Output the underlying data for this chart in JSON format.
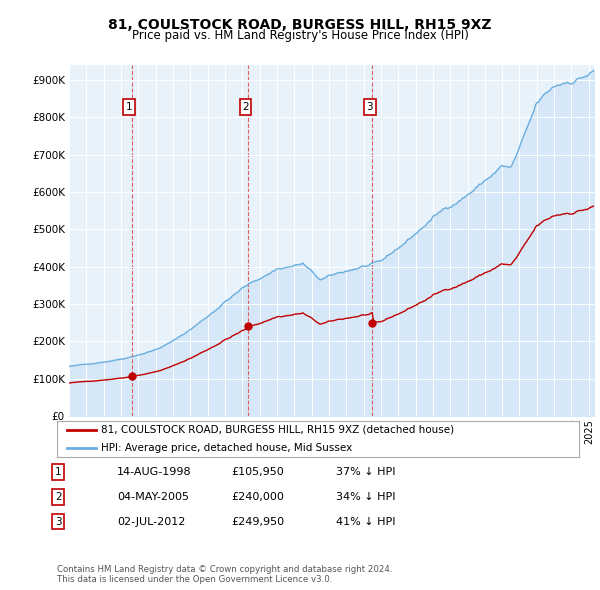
{
  "title": "81, COULSTOCK ROAD, BURGESS HILL, RH15 9XZ",
  "subtitle": "Price paid vs. HM Land Registry's House Price Index (HPI)",
  "ytick_values": [
    0,
    100000,
    200000,
    300000,
    400000,
    500000,
    600000,
    700000,
    800000,
    900000
  ],
  "ylim": [
    0,
    940000
  ],
  "xlim_start": 1995.0,
  "xlim_end": 2025.3,
  "hpi_color": "#6aaee0",
  "hpi_fill_color": "#d6e8f7",
  "price_color": "#c00000",
  "dashed_color": "#e06060",
  "transactions": [
    {
      "num": 1,
      "date": 1998.62,
      "price": 105950,
      "label": "1"
    },
    {
      "num": 2,
      "date": 2005.34,
      "price": 240000,
      "label": "2"
    },
    {
      "num": 3,
      "date": 2012.5,
      "price": 249950,
      "label": "3"
    }
  ],
  "legend_entries": [
    "81, COULSTOCK ROAD, BURGESS HILL, RH15 9XZ (detached house)",
    "HPI: Average price, detached house, Mid Sussex"
  ],
  "table_rows": [
    [
      "1",
      "14-AUG-1998",
      "£105,950",
      "37% ↓ HPI"
    ],
    [
      "2",
      "04-MAY-2005",
      "£240,000",
      "34% ↓ HPI"
    ],
    [
      "3",
      "02-JUL-2012",
      "£249,950",
      "41% ↓ HPI"
    ]
  ],
  "footnote": "Contains HM Land Registry data © Crown copyright and database right 2024.\nThis data is licensed under the Open Government Licence v3.0.",
  "background_color": "#ffffff",
  "chart_bg_color": "#e8f2fb",
  "grid_color": "#ffffff"
}
